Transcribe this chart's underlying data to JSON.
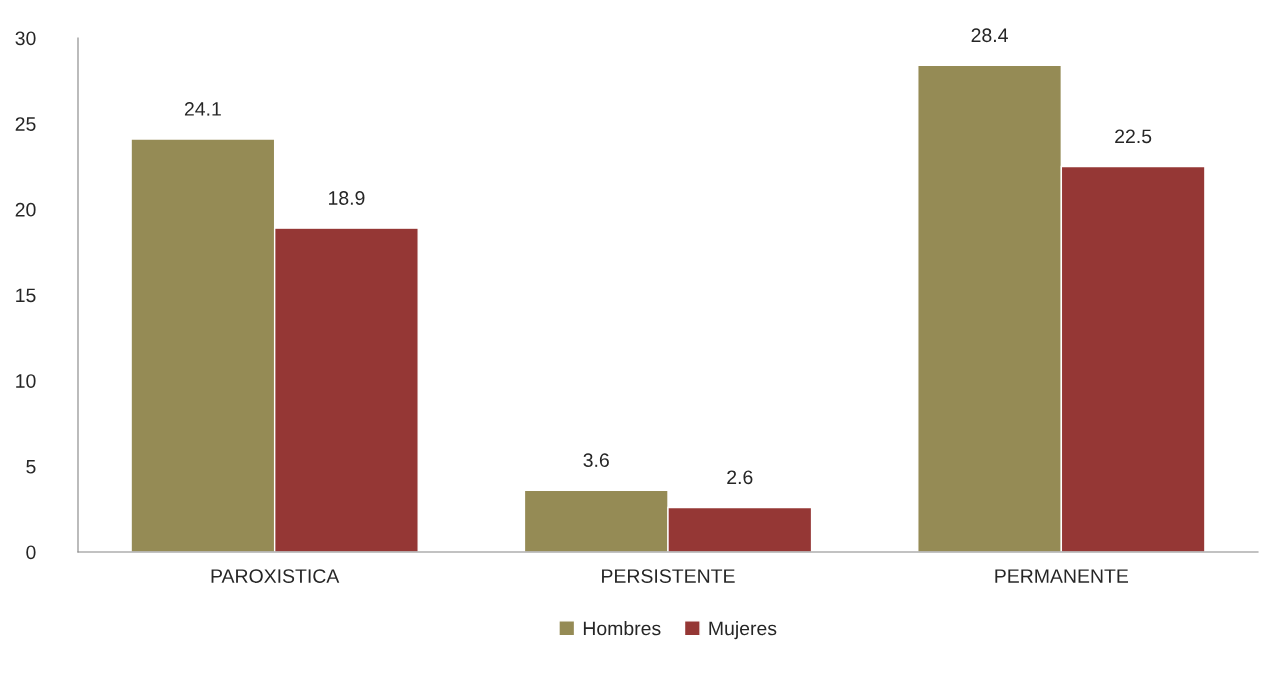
{
  "chart_data": {
    "type": "bar",
    "categories": [
      "PAROXISTICA",
      "PERSISTENTE",
      "PERMANENTE"
    ],
    "series": [
      {
        "name": "Hombres",
        "color": "#958b55",
        "values": [
          24.1,
          3.6,
          28.4
        ]
      },
      {
        "name": "Mujeres",
        "color": "#953735",
        "values": [
          18.9,
          2.6,
          22.5
        ]
      }
    ],
    "ylim": [
      0,
      30
    ],
    "yticks": [
      0,
      5,
      10,
      15,
      20,
      25,
      30
    ],
    "data_labels": true,
    "legend": "bottom",
    "grid": false
  }
}
